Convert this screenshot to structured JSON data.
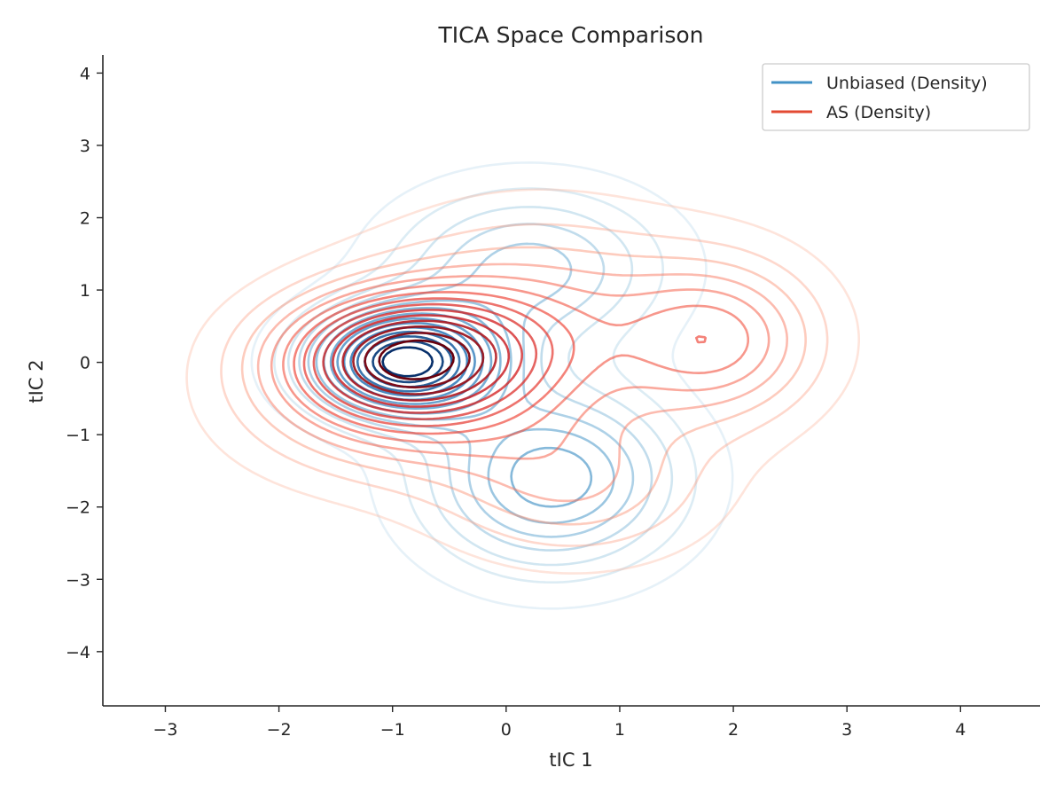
{
  "chart_data": {
    "type": "contour",
    "title": "TICA Space Comparison",
    "xlabel": "tIC 1",
    "ylabel": "tIC 2",
    "xlim": [
      -3.55,
      4.7
    ],
    "ylim": [
      -4.75,
      4.25
    ],
    "xticks": [
      -3,
      -2,
      -1,
      0,
      1,
      2,
      3,
      4
    ],
    "yticks": [
      -4,
      -3,
      -2,
      -1,
      0,
      1,
      2,
      3,
      4
    ],
    "xtick_labels": [
      "−3",
      "−2",
      "−1",
      "0",
      "1",
      "2",
      "3",
      "4"
    ],
    "ytick_labels": [
      "−4",
      "−3",
      "−2",
      "−1",
      "0",
      "1",
      "2",
      "3",
      "4"
    ],
    "legend_position": "top-right",
    "grid": false,
    "series": [
      {
        "name": "Unbiased (Density)",
        "legend_color": "#4292c6",
        "colormap": "Blues",
        "levels": 15,
        "modes": [
          {
            "x": -0.9,
            "y": 0.0,
            "sx": 0.55,
            "sy": 0.5,
            "weight": 1.0
          },
          {
            "x": 0.4,
            "y": -1.6,
            "sx": 0.75,
            "sy": 0.85,
            "weight": 0.5
          },
          {
            "x": 0.2,
            "y": 1.3,
            "sx": 0.8,
            "sy": 0.75,
            "weight": 0.35
          }
        ]
      },
      {
        "name": "AS (Density)",
        "legend_color": "#e34a33",
        "colormap": "Reds",
        "levels": 15,
        "modes": [
          {
            "x": -0.9,
            "y": 0.1,
            "sx": 0.75,
            "sy": 0.6,
            "weight": 1.0
          },
          {
            "x": 0.3,
            "y": 0.5,
            "sx": 1.0,
            "sy": 1.0,
            "weight": 0.4
          },
          {
            "x": 1.9,
            "y": 0.3,
            "sx": 0.6,
            "sy": 0.75,
            "weight": 0.45
          },
          {
            "x": 0.6,
            "y": -1.7,
            "sx": 0.8,
            "sy": 0.7,
            "weight": 0.3
          },
          {
            "x": -1.0,
            "y": -0.7,
            "sx": 0.9,
            "sy": 0.7,
            "weight": 0.3
          }
        ]
      }
    ]
  }
}
